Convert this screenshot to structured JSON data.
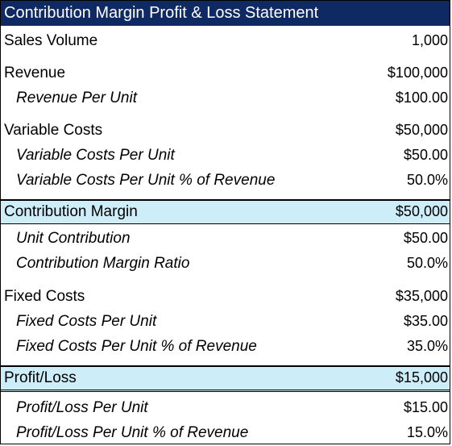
{
  "title": "Contribution Margin Profit & Loss Statement",
  "rows": [
    {
      "label": "Sales Volume",
      "value": "1,000"
    },
    {
      "label": "Revenue",
      "value": "$100,000"
    },
    {
      "label": "Revenue Per Unit",
      "value": "$100.00"
    },
    {
      "label": "Variable Costs",
      "value": "$50,000"
    },
    {
      "label": "Variable Costs Per Unit",
      "value": "$50.00"
    },
    {
      "label": "Variable Costs Per Unit % of Revenue",
      "value": "50.0%"
    },
    {
      "label": "Contribution Margin",
      "value": "$50,000"
    },
    {
      "label": "Unit Contribution",
      "value": "$50.00"
    },
    {
      "label": "Contribution Margin Ratio",
      "value": "50.0%"
    },
    {
      "label": "Fixed Costs",
      "value": "$35,000"
    },
    {
      "label": "Fixed Costs Per Unit",
      "value": "$35.00"
    },
    {
      "label": "Fixed Costs Per Unit % of Revenue",
      "value": "35.0%"
    },
    {
      "label": "Profit/Loss",
      "value": "$15,000"
    },
    {
      "label": "Profit/Loss Per Unit",
      "value": "$15.00"
    },
    {
      "label": "Profit/Loss Per Unit % of Revenue",
      "value": "15.0%"
    }
  ],
  "colors": {
    "title_background": "#0f2a63",
    "title_text": "#ffffff",
    "highlight_background": "#cdeef9"
  }
}
